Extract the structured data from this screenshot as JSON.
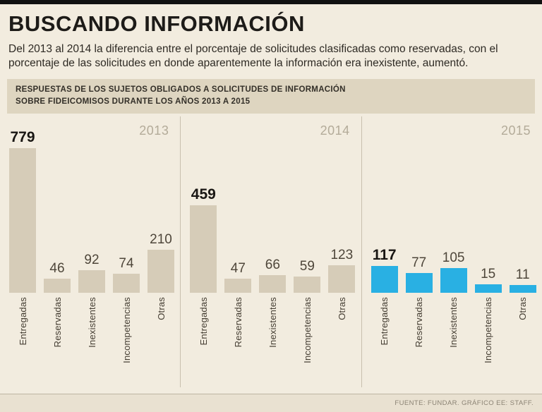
{
  "page": {
    "title": "BUSCANDO INFORMACIÓN",
    "subtitle": "Del 2013 al 2014 la diferencia entre el porcentaje de solicitudes clasificadas como reservadas, con el porcentaje de las solicitudes en donde aparentemente la información era inexistente, aumentó.",
    "band_line1": "RESPUESTAS DE LOS SUJETOS OBLIGADOS A SOLICITUDES DE INFORMACIÓN",
    "band_line2": "SOBRE FIDEICOMISOS DURANTE LOS AÑOS 2013 A 2015",
    "footer": "FUENTE: FUNDAR. GRÁFICO EE: STAFF."
  },
  "colors": {
    "background": "#f2ecdf",
    "band_background": "#ded5c0",
    "bar_beige": "#d6ccb8",
    "bar_blue": "#29b0e3",
    "divider": "#c8c0ae",
    "year_label": "#b3ab99"
  },
  "chart_data": {
    "type": "bar",
    "title": "RESPUESTAS DE LOS SUJETOS OBLIGADOS A SOLICITUDES DE INFORMACIÓN SOBRE FIDEICOMISOS DURANTE LOS AÑOS 2013 A 2015",
    "categories": [
      "Entregadas",
      "Reservadas",
      "Inexistentes",
      "Incompetencias",
      "Otras"
    ],
    "series": [
      {
        "name": "2013",
        "color": "#d6ccb8",
        "values": [
          779,
          46,
          92,
          74,
          210
        ]
      },
      {
        "name": "2014",
        "color": "#d6ccb8",
        "values": [
          459,
          47,
          66,
          59,
          123
        ]
      },
      {
        "name": "2015",
        "color": "#29b0e3",
        "values": [
          117,
          77,
          105,
          15,
          11
        ]
      }
    ],
    "ylim": [
      0,
      800
    ],
    "grid": false,
    "legend_position": "year-label-top-right-of-each-panel",
    "category_label_orientation": "rotated-90-bottom-to-top",
    "value_labels": "above-bars",
    "source": "FUENTE: FUNDAR. GRÁFICO EE: STAFF."
  }
}
